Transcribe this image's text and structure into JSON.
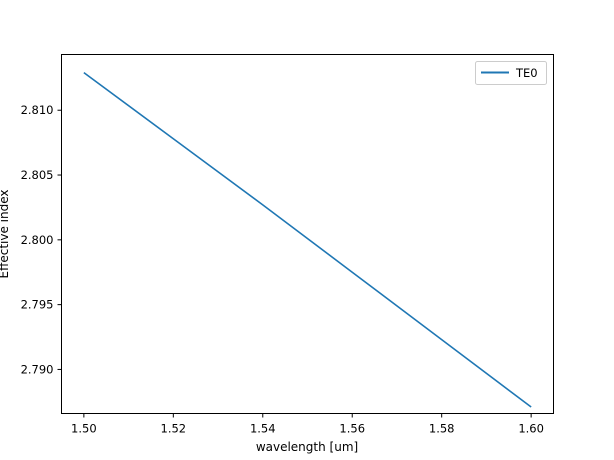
{
  "chart_data": {
    "type": "line",
    "title": "",
    "xlabel": "wavelength [um]",
    "ylabel": "Effective index",
    "xlim": [
      1.495,
      1.605
    ],
    "ylim": [
      2.7866,
      2.8143
    ],
    "xticks": [
      1.5,
      1.52,
      1.54,
      1.56,
      1.58,
      1.6
    ],
    "xtick_labels": [
      "1.50",
      "1.52",
      "1.54",
      "1.56",
      "1.58",
      "1.60"
    ],
    "yticks": [
      2.79,
      2.795,
      2.8,
      2.805,
      2.81
    ],
    "ytick_labels": [
      "2.790",
      "2.795",
      "2.800",
      "2.805",
      "2.810"
    ],
    "grid": false,
    "legend_position": "top-right",
    "series": [
      {
        "name": "TE0",
        "color": "#1f77b4",
        "x": [
          1.5,
          1.52,
          1.54,
          1.56,
          1.58,
          1.6
        ],
        "y": [
          2.8129,
          2.8078,
          2.8027,
          2.7975,
          2.7923,
          2.7871
        ]
      }
    ]
  }
}
